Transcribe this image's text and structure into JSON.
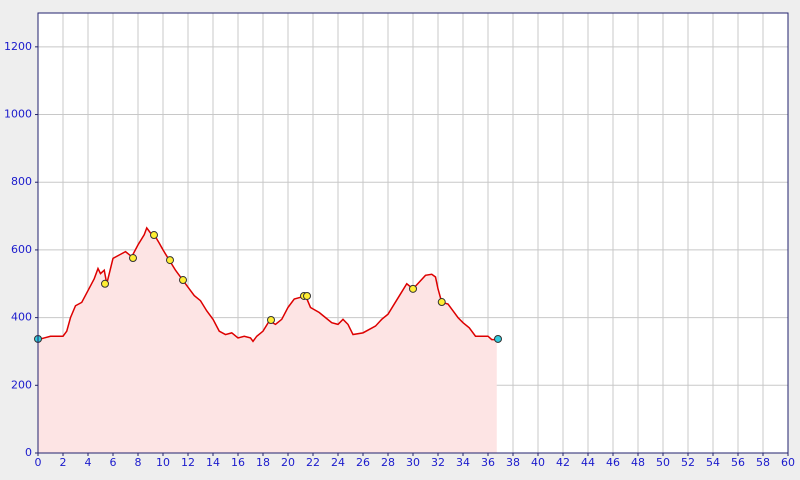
{
  "chart_data": {
    "type": "area",
    "x": [
      0,
      0.5,
      1,
      2,
      2.3,
      2.6,
      3,
      3.5,
      4,
      4.5,
      4.8,
      5,
      5.3,
      5.5,
      6,
      6.5,
      7,
      7.5,
      8,
      8.5,
      8.7,
      9,
      9.3,
      9.7,
      10,
      10.5,
      11,
      11.6,
      12,
      12.5,
      13,
      13.5,
      14,
      14.5,
      15,
      15.5,
      16,
      16.5,
      17,
      17.2,
      17.5,
      18,
      18.5,
      19,
      19.5,
      20,
      20.5,
      21,
      21.4,
      21.8,
      22.5,
      23,
      23.5,
      24,
      24.4,
      24.8,
      25.2,
      26,
      26.5,
      27,
      27.5,
      28,
      28.5,
      29,
      29.5,
      30,
      30.5,
      31,
      31.5,
      31.8,
      32,
      32.3,
      32.8,
      33.2,
      33.6,
      34,
      34.5,
      35,
      35.5,
      36,
      36.3,
      36.7
    ],
    "values": [
      335,
      340,
      345,
      345,
      360,
      400,
      435,
      445,
      480,
      515,
      545,
      530,
      540,
      500,
      575,
      585,
      595,
      580,
      615,
      645,
      665,
      650,
      645,
      620,
      600,
      570,
      540,
      510,
      490,
      465,
      450,
      420,
      395,
      360,
      350,
      355,
      340,
      345,
      340,
      330,
      345,
      360,
      390,
      380,
      395,
      430,
      455,
      460,
      465,
      430,
      415,
      400,
      385,
      380,
      395,
      380,
      350,
      355,
      365,
      375,
      395,
      410,
      440,
      470,
      500,
      485,
      505,
      525,
      528,
      520,
      485,
      445,
      440,
      420,
      400,
      385,
      370,
      345,
      345,
      345,
      335,
      335
    ],
    "color": "#dd0000",
    "fill": "#fde4e4",
    "markers": {
      "x": [
        0,
        5.36,
        7.6,
        9.28,
        10.56,
        11.6,
        18.64,
        21.28,
        21.52,
        30,
        32.3,
        36.8
      ],
      "values": [
        337,
        500,
        576,
        644,
        570,
        511,
        393,
        464,
        464,
        485,
        446,
        337
      ],
      "colors": [
        "#33ccdd",
        "#ffee33",
        "#ffee33",
        "#ffee33",
        "#ffee33",
        "#ffee33",
        "#ffee33",
        "#ffee33",
        "#ffee33",
        "#ffee33",
        "#ffee33",
        "#33ccdd"
      ]
    },
    "xlim": [
      0,
      60
    ],
    "xticks": [
      0,
      2,
      4,
      6,
      8,
      10,
      12,
      14,
      16,
      18,
      20,
      22,
      24,
      26,
      28,
      30,
      32,
      34,
      36,
      38,
      40,
      42,
      44,
      46,
      48,
      50,
      52,
      54,
      56,
      58,
      60
    ],
    "ylim": [
      0,
      1300
    ],
    "yticks": [
      0,
      200,
      400,
      600,
      800,
      1000,
      1200
    ],
    "grid": true
  }
}
